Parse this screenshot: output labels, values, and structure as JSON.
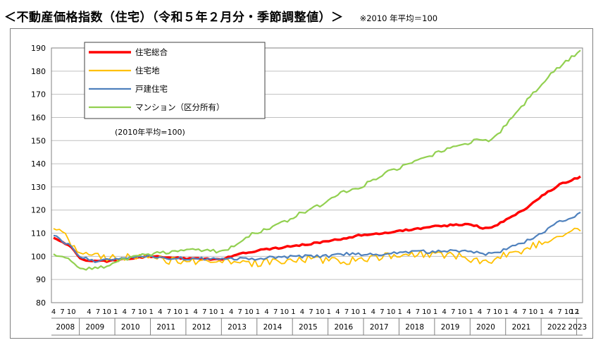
{
  "heading": {
    "title": "＜不動産価格指数（住宅）（令和５年２月分・季節調整値）＞",
    "note": "※2010 年平均＝100"
  },
  "chart_data": {
    "type": "line",
    "title": "＜不動産価格指数（住宅）（令和５年２月分・季節調整値）＞",
    "base_note": "(2010年平均=100)",
    "ylim": [
      80,
      190
    ],
    "yticks": [
      80,
      90,
      100,
      110,
      120,
      130,
      140,
      150,
      160,
      170,
      180,
      190
    ],
    "x_start": "2008-04",
    "x_end": "2023-02",
    "month_tick_labels": [
      "4",
      "7",
      "10",
      "1"
    ],
    "first_year_month_ticks": [
      "4",
      "7",
      "10"
    ],
    "last_year_month_ticks": [
      "12"
    ],
    "years": [
      "2008",
      "2009",
      "2010",
      "2011",
      "2012",
      "2013",
      "2014",
      "2015",
      "2016",
      "2017",
      "2018",
      "2019",
      "2020",
      "2021",
      "2022",
      "2023"
    ],
    "grid": "horizontal",
    "legend_position": "top-left",
    "series": [
      {
        "name": "住宅総合",
        "color": "#ff0000",
        "anchors": [
          [
            "2008-04",
            108
          ],
          [
            "2008-06",
            107
          ],
          [
            "2008-10",
            104
          ],
          [
            "2009-01",
            99
          ],
          [
            "2009-04",
            98
          ],
          [
            "2009-10",
            98
          ],
          [
            "2010-04",
            99
          ],
          [
            "2011-01",
            100
          ],
          [
            "2011-07",
            99.5
          ],
          [
            "2012-01",
            99
          ],
          [
            "2012-07",
            98.8
          ],
          [
            "2013-01",
            99
          ],
          [
            "2013-07",
            101
          ],
          [
            "2014-01",
            102.5
          ],
          [
            "2014-07",
            103.5
          ],
          [
            "2015-01",
            104.5
          ],
          [
            "2015-07",
            105.5
          ],
          [
            "2016-01",
            106.5
          ],
          [
            "2016-07",
            108
          ],
          [
            "2017-01",
            109.5
          ],
          [
            "2017-07",
            110
          ],
          [
            "2018-01",
            111
          ],
          [
            "2018-07",
            112
          ],
          [
            "2019-01",
            113
          ],
          [
            "2019-07",
            113.5
          ],
          [
            "2020-01",
            114
          ],
          [
            "2020-05",
            112
          ],
          [
            "2020-09",
            113
          ],
          [
            "2021-01",
            116
          ],
          [
            "2021-07",
            120
          ],
          [
            "2022-01",
            126
          ],
          [
            "2022-07",
            131
          ],
          [
            "2023-01",
            134
          ],
          [
            "2023-02",
            134.5
          ]
        ]
      },
      {
        "name": "住宅地",
        "color": "#ffc000",
        "anchors": [
          [
            "2008-04",
            112
          ],
          [
            "2008-07",
            111
          ],
          [
            "2008-10",
            105
          ],
          [
            "2009-01",
            102
          ],
          [
            "2009-07",
            100
          ],
          [
            "2010-01",
            99
          ],
          [
            "2010-07",
            100
          ],
          [
            "2011-01",
            99.5
          ],
          [
            "2011-07",
            98
          ],
          [
            "2012-01",
            98
          ],
          [
            "2012-07",
            98
          ],
          [
            "2013-01",
            98
          ],
          [
            "2013-07",
            97
          ],
          [
            "2014-01",
            97
          ],
          [
            "2014-07",
            98
          ],
          [
            "2015-01",
            98.5
          ],
          [
            "2015-07",
            99
          ],
          [
            "2016-01",
            98
          ],
          [
            "2016-07",
            98
          ],
          [
            "2017-01",
            99
          ],
          [
            "2017-07",
            100
          ],
          [
            "2018-01",
            100
          ],
          [
            "2018-07",
            101
          ],
          [
            "2019-01",
            101
          ],
          [
            "2019-07",
            100.5
          ],
          [
            "2020-01",
            99
          ],
          [
            "2020-07",
            97
          ],
          [
            "2021-01",
            101
          ],
          [
            "2021-07",
            103
          ],
          [
            "2022-01",
            106
          ],
          [
            "2022-07",
            110
          ],
          [
            "2023-01",
            111
          ],
          [
            "2023-02",
            111
          ]
        ]
      },
      {
        "name": "戸建住宅",
        "color": "#4f81bd",
        "anchors": [
          [
            "2008-04",
            109
          ],
          [
            "2008-10",
            104
          ],
          [
            "2009-01",
            100
          ],
          [
            "2009-07",
            97.5
          ],
          [
            "2010-01",
            99
          ],
          [
            "2010-07",
            100
          ],
          [
            "2011-01",
            100
          ],
          [
            "2011-07",
            99
          ],
          [
            "2012-01",
            99
          ],
          [
            "2012-07",
            99
          ],
          [
            "2013-01",
            99
          ],
          [
            "2013-07",
            99
          ],
          [
            "2014-01",
            99
          ],
          [
            "2014-07",
            99.5
          ],
          [
            "2015-01",
            100
          ],
          [
            "2015-07",
            100
          ],
          [
            "2016-01",
            100
          ],
          [
            "2016-07",
            101
          ],
          [
            "2017-01",
            101
          ],
          [
            "2017-07",
            101
          ],
          [
            "2018-01",
            102
          ],
          [
            "2018-07",
            102
          ],
          [
            "2019-01",
            102
          ],
          [
            "2019-07",
            102.5
          ],
          [
            "2020-01",
            102
          ],
          [
            "2020-07",
            101
          ],
          [
            "2021-01",
            103
          ],
          [
            "2021-07",
            106
          ],
          [
            "2022-01",
            110
          ],
          [
            "2022-07",
            115
          ],
          [
            "2023-01",
            118
          ],
          [
            "2023-02",
            119
          ]
        ]
      },
      {
        "name": "マンション（区分所有）",
        "color": "#92d050",
        "anchors": [
          [
            "2008-04",
            101
          ],
          [
            "2008-07",
            100
          ],
          [
            "2008-10",
            98
          ],
          [
            "2009-01",
            95
          ],
          [
            "2009-04",
            94.5
          ],
          [
            "2009-10",
            96
          ],
          [
            "2010-04",
            99
          ],
          [
            "2011-01",
            101
          ],
          [
            "2011-07",
            102
          ],
          [
            "2012-01",
            102.5
          ],
          [
            "2012-07",
            102.5
          ],
          [
            "2013-01",
            102
          ],
          [
            "2013-04",
            104
          ],
          [
            "2013-10",
            109
          ],
          [
            "2014-04",
            112
          ],
          [
            "2014-10",
            115
          ],
          [
            "2015-04",
            119
          ],
          [
            "2015-10",
            122
          ],
          [
            "2016-04",
            127
          ],
          [
            "2016-10",
            129
          ],
          [
            "2017-04",
            133
          ],
          [
            "2017-10",
            137
          ],
          [
            "2018-04",
            140
          ],
          [
            "2018-10",
            143
          ],
          [
            "2019-04",
            146
          ],
          [
            "2019-10",
            148
          ],
          [
            "2020-04",
            151
          ],
          [
            "2020-08",
            150
          ],
          [
            "2021-01",
            157
          ],
          [
            "2021-07",
            166
          ],
          [
            "2022-01",
            175
          ],
          [
            "2022-07",
            182
          ],
          [
            "2023-01",
            188
          ],
          [
            "2023-02",
            189
          ]
        ]
      }
    ]
  }
}
